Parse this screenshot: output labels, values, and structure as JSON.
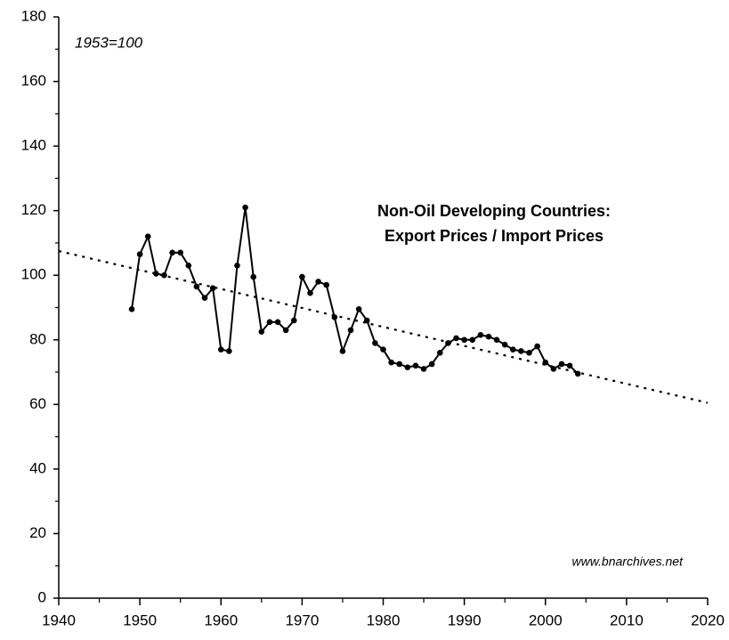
{
  "chart_data": {
    "type": "line",
    "title": [
      "Non-Oil Developing Countries:",
      "Export Prices / Import Prices"
    ],
    "note": "1953=100",
    "source": "www.bnarchives.net",
    "x": [
      1949,
      1950,
      1951,
      1952,
      1953,
      1954,
      1955,
      1956,
      1957,
      1958,
      1959,
      1960,
      1961,
      1962,
      1963,
      1964,
      1965,
      1966,
      1967,
      1968,
      1969,
      1970,
      1971,
      1972,
      1973,
      1974,
      1975,
      1976,
      1977,
      1978,
      1979,
      1980,
      1981,
      1982,
      1983,
      1984,
      1985,
      1986,
      1987,
      1988,
      1989,
      1990,
      1991,
      1992,
      1993,
      1994,
      1995,
      1996,
      1997,
      1998,
      1999,
      2000,
      2001,
      2002,
      2003,
      2004
    ],
    "series": [
      {
        "color": "#000000",
        "values": [
          89.5,
          106.5,
          112,
          100.5,
          100,
          107,
          107,
          103,
          96.5,
          93,
          96,
          77,
          76.5,
          103,
          121,
          99.5,
          82.5,
          85.5,
          85.5,
          83,
          86,
          99.5,
          94.5,
          98,
          97,
          87,
          76.5,
          83,
          89.5,
          86,
          79,
          77,
          73,
          72.5,
          71.5,
          72,
          71,
          72.5,
          76,
          79,
          80.5,
          80,
          80,
          81.5,
          81,
          80,
          78.5,
          77,
          76.5,
          76,
          78,
          73,
          71,
          72.5,
          72,
          69.5
        ]
      }
    ],
    "trendline": {
      "x": [
        1940,
        2020
      ],
      "values": [
        107.5,
        60.5
      ],
      "color": "#000000",
      "style": "dotted"
    },
    "xlim": [
      1940,
      2020
    ],
    "ylim": [
      0,
      180
    ],
    "xticks": [
      1940,
      1950,
      1960,
      1970,
      1980,
      1990,
      2000,
      2010,
      2020
    ],
    "xticks_minor": [
      1945,
      1955,
      1965,
      1975,
      1985,
      1995,
      2005,
      2015
    ],
    "yticks": [
      0,
      20,
      40,
      60,
      80,
      100,
      120,
      140,
      160,
      180
    ],
    "yticks_minor": [
      10,
      30,
      50,
      70,
      90,
      110,
      130,
      150,
      170
    ],
    "grid": false
  }
}
